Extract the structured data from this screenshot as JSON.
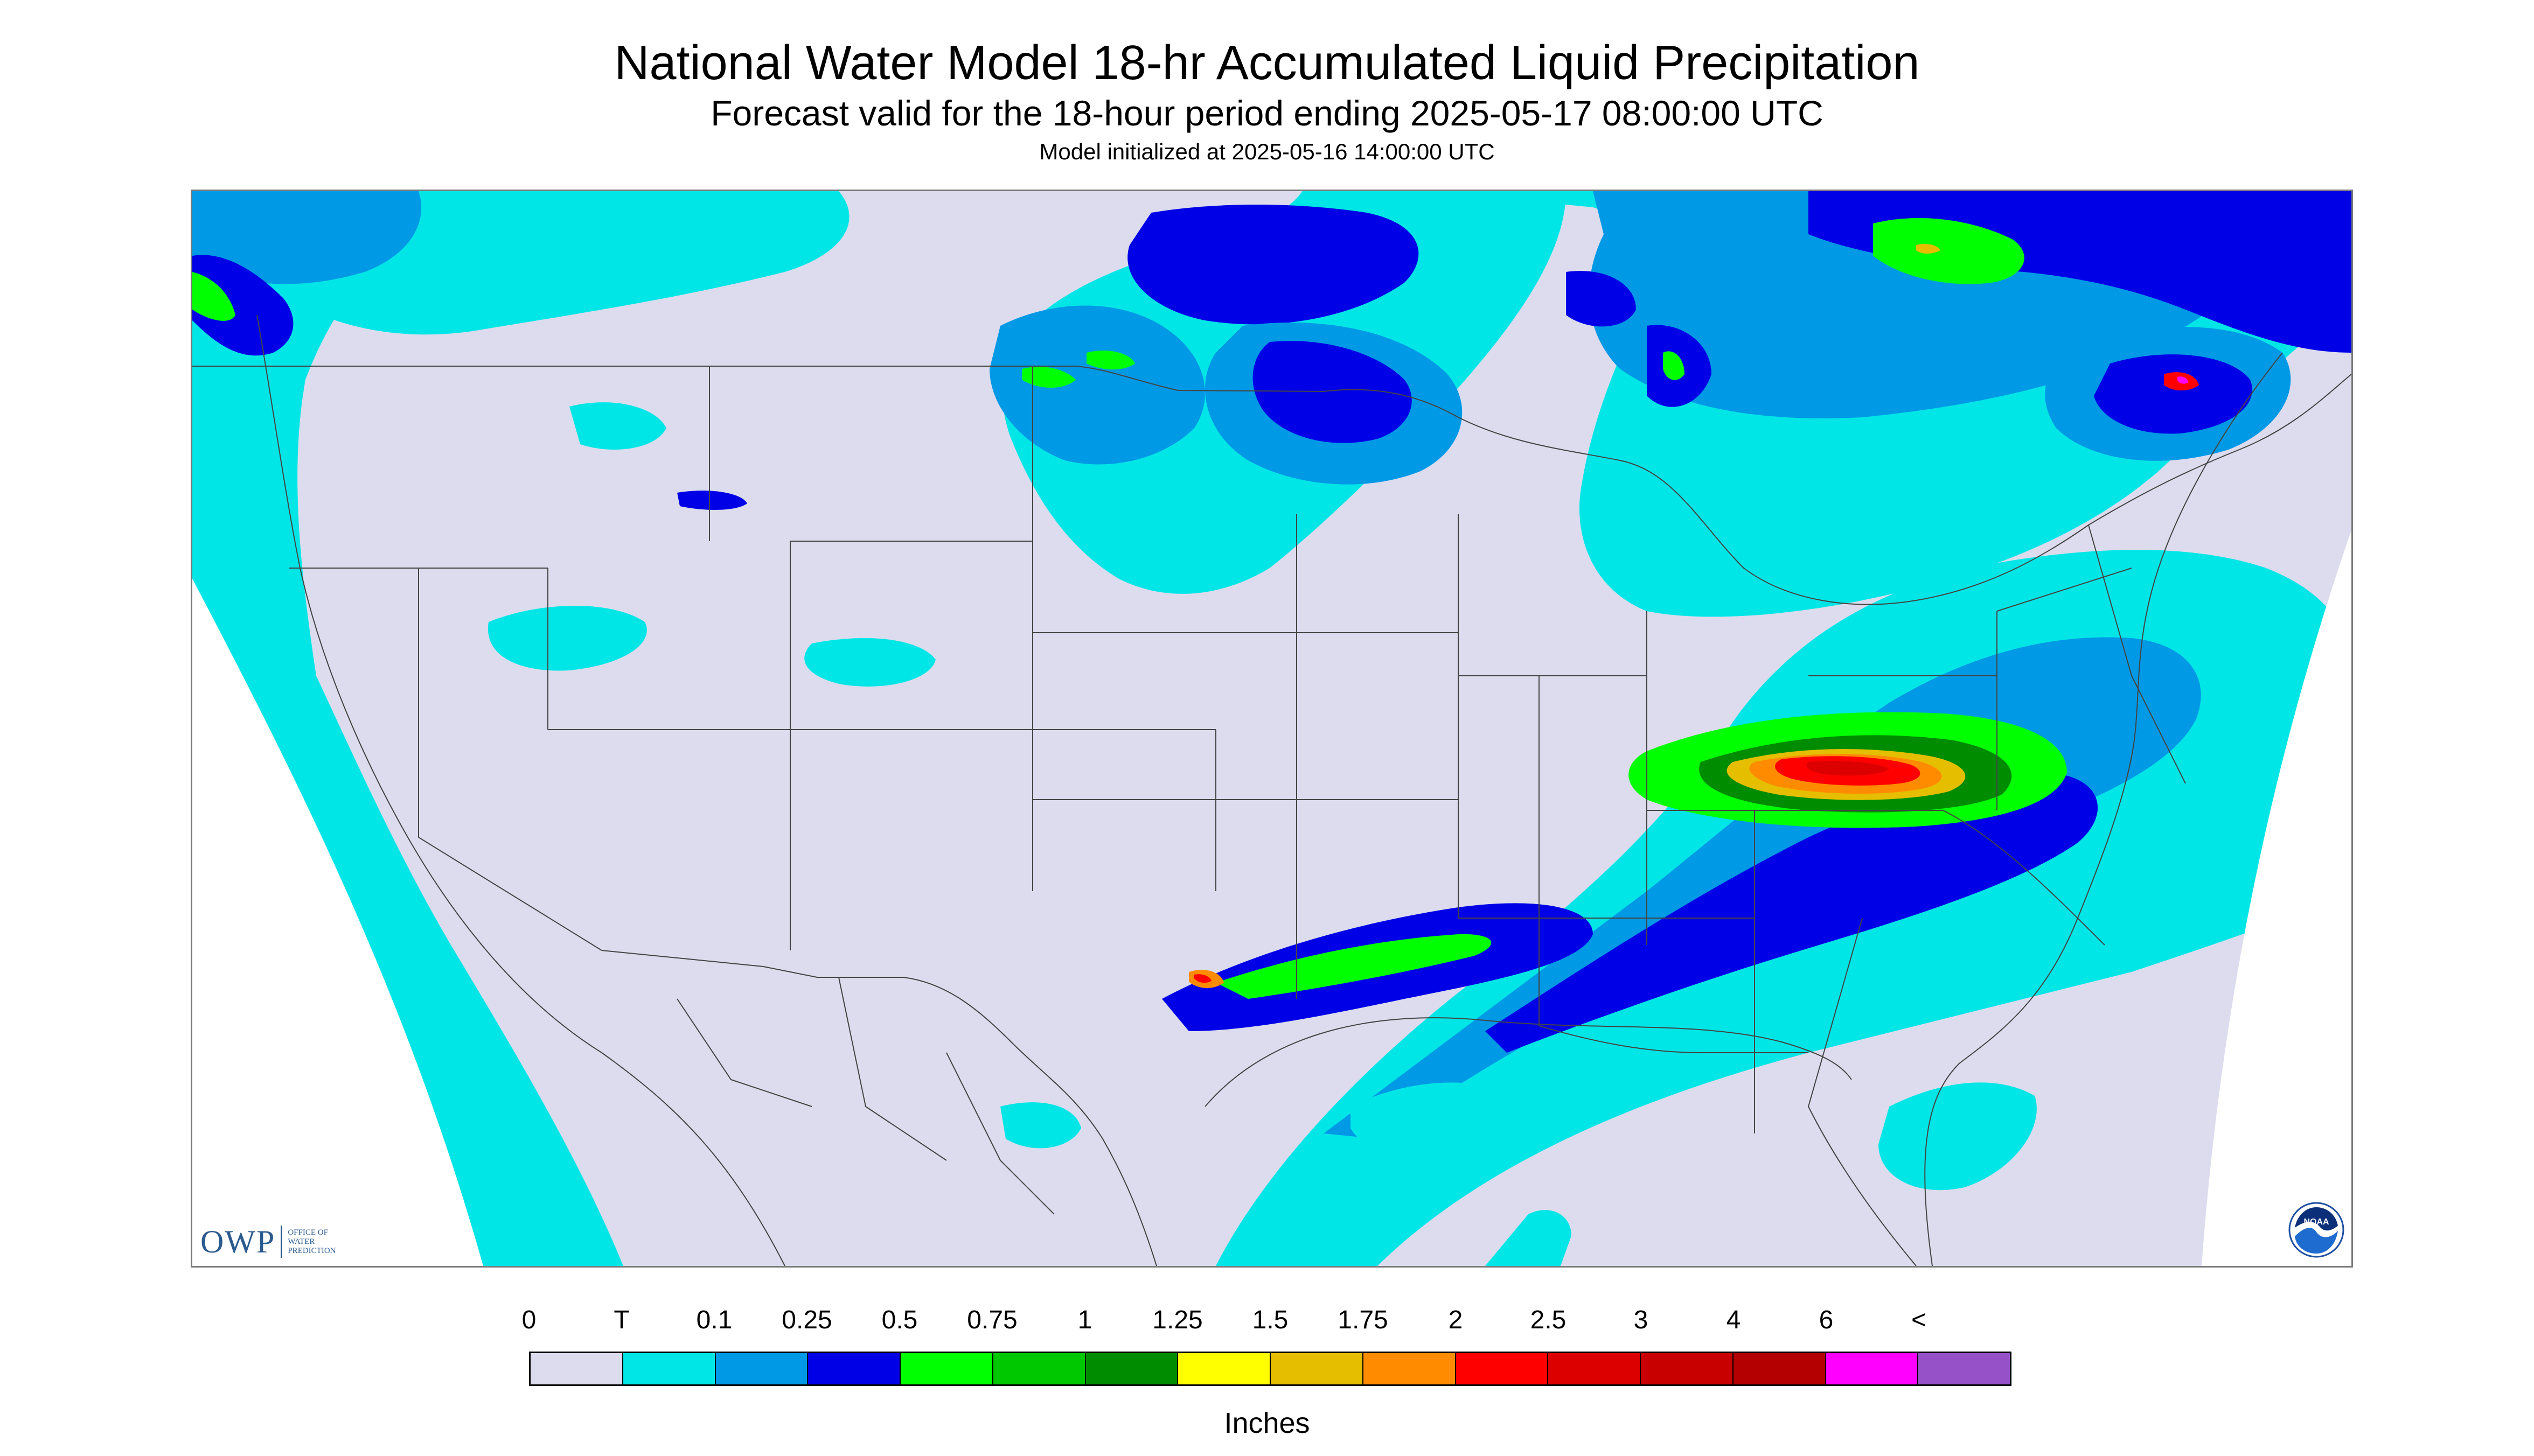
{
  "header": {
    "title": "National Water Model 18-hr Accumulated Liquid Precipitation",
    "subtitle": "Forecast valid for the 18-hour period ending 2025-05-17 08:00:00 UTC",
    "initialized": "Model initialized at 2025-05-16 14:00:00 UTC"
  },
  "logos": {
    "owp": {
      "text": "OWP",
      "office_lines": [
        "OFFICE OF",
        "WATER",
        "PREDICTION"
      ]
    },
    "noaa": {
      "text": "NOAA"
    }
  },
  "legend": {
    "units": "Inches",
    "labels": [
      "0",
      "T",
      "0.1",
      "0.25",
      "0.5",
      "0.75",
      "1",
      "1.25",
      "1.5",
      "1.75",
      "2",
      "2.5",
      "3",
      "4",
      "6",
      "<"
    ],
    "colors": [
      "#dcdcee",
      "#00e6e6",
      "#0099e6",
      "#0000e6",
      "#00ff00",
      "#00c800",
      "#008c00",
      "#ffff00",
      "#e6be00",
      "#ff8c00",
      "#ff0000",
      "#dc0000",
      "#c80000",
      "#b40000",
      "#ff00ff",
      "#9650c8"
    ]
  },
  "map": {
    "no_data_color": "#ffffff",
    "outside_domain_color": "#ffffff",
    "border_color": "#444444"
  }
}
